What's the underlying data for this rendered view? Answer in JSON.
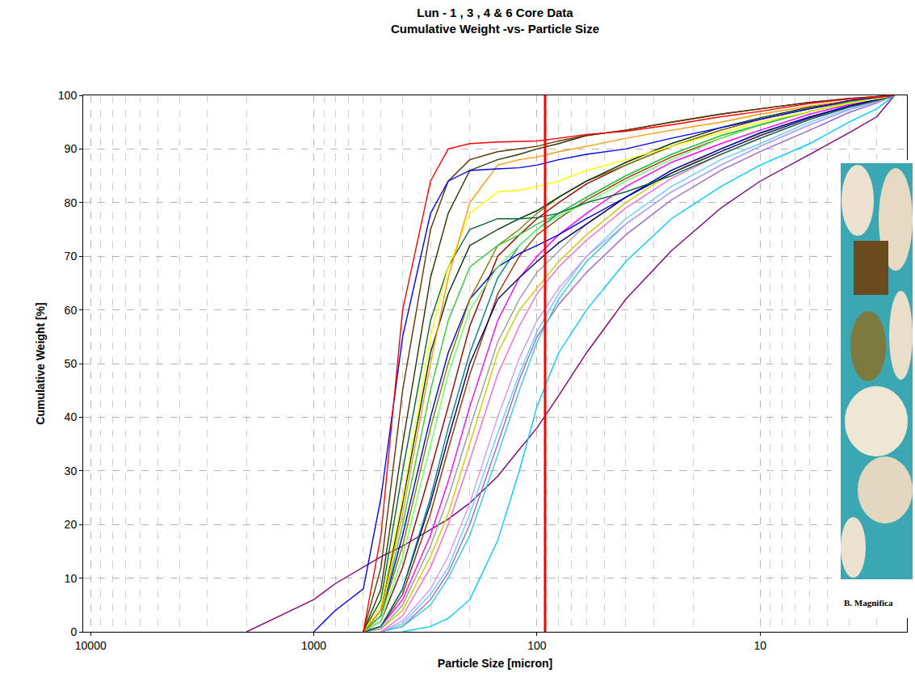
{
  "chart_data": {
    "type": "line",
    "title": "Lun - 1 , 3 , 4 & 6 Core Data",
    "subtitle": "Cumulative Weight -vs- Particle Size",
    "x_label": "Particle Size [micron]",
    "y_label": "Cumulative Weight [%]",
    "log": "x",
    "grid": true,
    "xlim": [
      10800,
      2.2
    ],
    "xticks": [
      10000,
      1000,
      100,
      10
    ],
    "ylim": [
      0,
      100
    ],
    "yticks": [
      0,
      10,
      20,
      30,
      40,
      50,
      60,
      70,
      80,
      90,
      100
    ],
    "x": [
      2000,
      1000,
      800,
      600,
      500,
      400,
      300,
      250,
      200,
      150,
      120,
      100,
      80,
      60,
      40,
      25,
      15,
      10,
      6,
      4,
      3,
      2.5
    ],
    "series": [
      {
        "color": "#800080",
        "values": [
          0,
          6,
          9,
          12,
          14,
          16,
          19,
          21,
          24,
          29,
          34,
          38,
          44,
          52,
          62,
          71,
          79,
          84,
          89,
          93,
          96,
          100
        ]
      },
      {
        "color": "#00ccff",
        "values": [
          null,
          null,
          null,
          null,
          null,
          0,
          1,
          2.5,
          6,
          17,
          30,
          42,
          52,
          60,
          69,
          77,
          83,
          87,
          91,
          95,
          97.5,
          100
        ]
      },
      {
        "color": "#9966cc",
        "values": [
          null,
          null,
          null,
          null,
          0,
          1,
          6,
          11,
          20,
          35,
          47,
          55,
          61,
          67,
          74,
          80.5,
          86,
          89.5,
          93.5,
          96.8,
          98.6,
          100
        ]
      },
      {
        "color": "#33cccc",
        "values": [
          null,
          null,
          null,
          null,
          0,
          1,
          5,
          10,
          18,
          33,
          45,
          54,
          62,
          69,
          76,
          82,
          87,
          90.5,
          94.5,
          97.3,
          98.8,
          100
        ]
      },
      {
        "color": "#66ccff",
        "values": [
          null,
          null,
          null,
          null,
          0,
          1.5,
          7,
          12,
          22,
          37,
          48,
          56,
          63,
          70,
          77,
          83,
          88,
          91,
          95,
          97.5,
          99,
          100
        ]
      },
      {
        "color": "#cc99ff",
        "values": [
          null,
          null,
          null,
          null,
          0,
          2,
          8,
          14,
          24,
          40,
          51,
          58,
          64,
          70,
          76,
          82,
          87,
          90.5,
          94.5,
          97.3,
          98.8,
          100
        ]
      },
      {
        "color": "#ff66cc",
        "values": [
          null,
          null,
          null,
          null,
          0,
          3,
          12,
          20,
          32,
          48,
          57,
          63,
          68,
          73,
          79,
          84.5,
          89,
          92,
          95.5,
          97.8,
          99,
          100
        ]
      },
      {
        "color": "#cccc00",
        "values": [
          null,
          null,
          null,
          0,
          0.5,
          4,
          14,
          22,
          35,
          52,
          60,
          64,
          69,
          74,
          80,
          85.5,
          90,
          92.8,
          96,
          98,
          99.2,
          100
        ]
      },
      {
        "color": "#999999",
        "values": [
          null,
          null,
          null,
          0,
          0.5,
          5,
          16,
          25,
          38,
          54,
          62,
          67,
          71,
          76,
          81,
          86,
          90,
          93,
          96,
          98,
          99.2,
          100
        ]
      },
      {
        "color": "#ff00ff",
        "values": [
          null,
          null,
          null,
          0,
          1,
          6,
          18,
          28,
          42,
          58,
          66,
          70,
          74,
          78,
          83,
          87.5,
          91,
          93.5,
          96.5,
          98.3,
          99.3,
          100
        ]
      },
      {
        "color": "#993300",
        "values": [
          null,
          null,
          null,
          0,
          1,
          7,
          22,
          34,
          48,
          63,
          70,
          74,
          77,
          80.5,
          84.5,
          88.5,
          92,
          94.5,
          97,
          98.5,
          99.4,
          100
        ]
      },
      {
        "color": "#000066",
        "values": [
          null,
          null,
          null,
          0,
          1,
          8,
          24,
          36,
          50,
          62,
          66,
          69,
          72.5,
          76,
          81,
          85.5,
          89.5,
          92.5,
          95.8,
          98,
          99.2,
          100
        ]
      },
      {
        "color": "#008080",
        "values": [
          null,
          null,
          null,
          0,
          1,
          8,
          25,
          38,
          52,
          66,
          72,
          75,
          78,
          81,
          85,
          89,
          92.5,
          94.5,
          97,
          98.6,
          99.4,
          100
        ]
      },
      {
        "color": "#990000",
        "values": [
          null,
          null,
          null,
          0,
          2,
          12,
          30,
          42,
          57,
          70,
          74,
          77,
          80,
          83.5,
          87,
          90.5,
          93.5,
          95.5,
          97.5,
          98.8,
          99.5,
          100
        ]
      },
      {
        "color": "#0000cc",
        "values": [
          null,
          null,
          null,
          0,
          3,
          18,
          40,
          52,
          62,
          68,
          70.5,
          72,
          74,
          77,
          81,
          86,
          90,
          93,
          96,
          98,
          99.2,
          100
        ]
      },
      {
        "color": "#808000",
        "values": [
          null,
          null,
          null,
          0,
          3,
          16,
          38,
          50,
          62,
          72,
          75,
          78,
          81,
          84,
          87,
          90.5,
          93.5,
          95.5,
          97.6,
          98.8,
          99.5,
          100
        ]
      },
      {
        "color": "#66ff66",
        "values": [
          null,
          null,
          null,
          0,
          2,
          14,
          35,
          48,
          60,
          68,
          72,
          75,
          77.5,
          80,
          84,
          88,
          92,
          94.5,
          97,
          98.6,
          99.4,
          100
        ]
      },
      {
        "color": "#33cc33",
        "values": [
          null,
          null,
          null,
          0,
          3,
          20,
          45,
          58,
          68,
          72,
          74,
          76,
          78,
          81,
          85,
          89,
          92.5,
          94.5,
          97,
          98.5,
          99.4,
          100
        ]
      },
      {
        "color": "#003300",
        "values": [
          null,
          null,
          null,
          0,
          4,
          24,
          52,
          63,
          72,
          75,
          77,
          78.5,
          81,
          84,
          87.5,
          91,
          94,
          95.8,
          97.8,
          99,
          99.6,
          100
        ]
      },
      {
        "color": "#006633",
        "values": [
          null,
          null,
          null,
          0,
          6,
          30,
          58,
          68,
          75,
          77,
          77,
          77.2,
          78,
          80,
          82,
          85,
          89,
          92,
          95.5,
          97.8,
          99,
          100
        ]
      },
      {
        "color": "#ffff00",
        "values": [
          null,
          null,
          null,
          0,
          5,
          25,
          55,
          68,
          78,
          82,
          82.3,
          83,
          84,
          86,
          88,
          90.5,
          93,
          95,
          97,
          98.5,
          99.4,
          100
        ]
      },
      {
        "color": "#ff9900",
        "values": [
          null,
          null,
          null,
          0,
          4,
          22,
          50,
          66,
          80,
          87,
          88,
          88.5,
          89.5,
          90.5,
          92,
          93.5,
          95,
          96.5,
          98,
          99,
          99.6,
          100
        ]
      },
      {
        "color": "#333300",
        "values": [
          null,
          null,
          null,
          0,
          8,
          35,
          66,
          78,
          86,
          88,
          89,
          90,
          91,
          92.5,
          93.5,
          95,
          96.5,
          97.5,
          98.7,
          99.4,
          99.8,
          100
        ]
      },
      {
        "color": "#663300",
        "values": [
          null,
          null,
          null,
          0,
          12,
          45,
          75,
          84,
          88,
          89.5,
          90,
          90.5,
          91.5,
          92.5,
          93.5,
          95,
          96.5,
          97.5,
          98.7,
          99.4,
          99.8,
          100
        ]
      },
      {
        "color": "#0000ff",
        "values": [
          null,
          0,
          4,
          8,
          25,
          55,
          78,
          84,
          86,
          86.3,
          86.5,
          87,
          88,
          89,
          90,
          92,
          94,
          95.5,
          97.5,
          99,
          99.6,
          100
        ]
      },
      {
        "color": "#ff0000",
        "values": [
          null,
          null,
          null,
          0,
          18,
          60,
          84,
          90,
          91,
          91.3,
          91.4,
          91.5,
          92,
          92.7,
          93.3,
          94.5,
          96,
          97,
          98.5,
          99.3,
          99.7,
          100
        ]
      },
      {
        "color": "#ff0000",
        "x": [
          92,
          92
        ],
        "values": [
          0,
          100
        ]
      }
    ],
    "annotations": [
      {
        "text": "B. Magnifica"
      }
    ]
  }
}
